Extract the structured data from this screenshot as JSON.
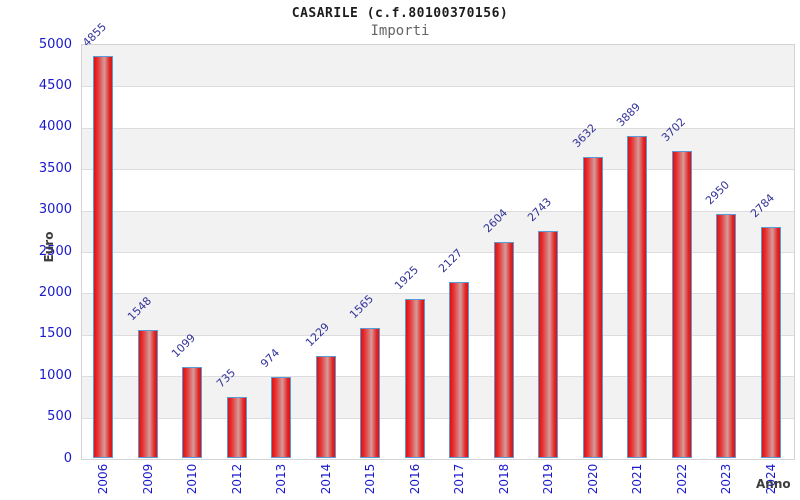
{
  "header": {
    "title": "CASARILE (c.f.80100370156)",
    "subtitle": "Importi"
  },
  "chart_data": {
    "type": "bar",
    "title": "CASARILE (c.f.80100370156)",
    "subtitle": "Importi",
    "xlabel": "Anno",
    "ylabel": "Euro",
    "categories": [
      "2006",
      "2009",
      "2010",
      "2012",
      "2013",
      "2014",
      "2015",
      "2016",
      "2017",
      "2018",
      "2019",
      "2020",
      "2021",
      "2022",
      "2023",
      "2024"
    ],
    "values": [
      4855,
      1548,
      1099,
      735,
      974,
      1229,
      1565,
      1925,
      2127,
      2604,
      2743,
      3632,
      3889,
      3702,
      2950,
      2784
    ],
    "ylim": [
      0,
      5000
    ],
    "ytick_step": 500,
    "yticks": [
      0,
      500,
      1000,
      1500,
      2000,
      2500,
      3000,
      3500,
      4000,
      4500,
      5000
    ],
    "grid": "horizontal gridlines with alternating shaded bands",
    "legend": "none",
    "bar_labels_rotation_deg": -45,
    "x_tick_rotation_deg": -90,
    "colors": {
      "bar_fill_red": "#e01212",
      "bar_fill_center_light": "#d59b9b",
      "bar_border_blue": "#5b9bd5",
      "tick_label_blue": "#1a1acc",
      "value_label_blue": "#333399",
      "band_gray": "#f2f2f2",
      "gridline_gray": "#dddddd",
      "axis_label_gray": "#3d3d3d",
      "subtitle_gray": "#666666",
      "title_black": "#1c1c1c"
    }
  }
}
